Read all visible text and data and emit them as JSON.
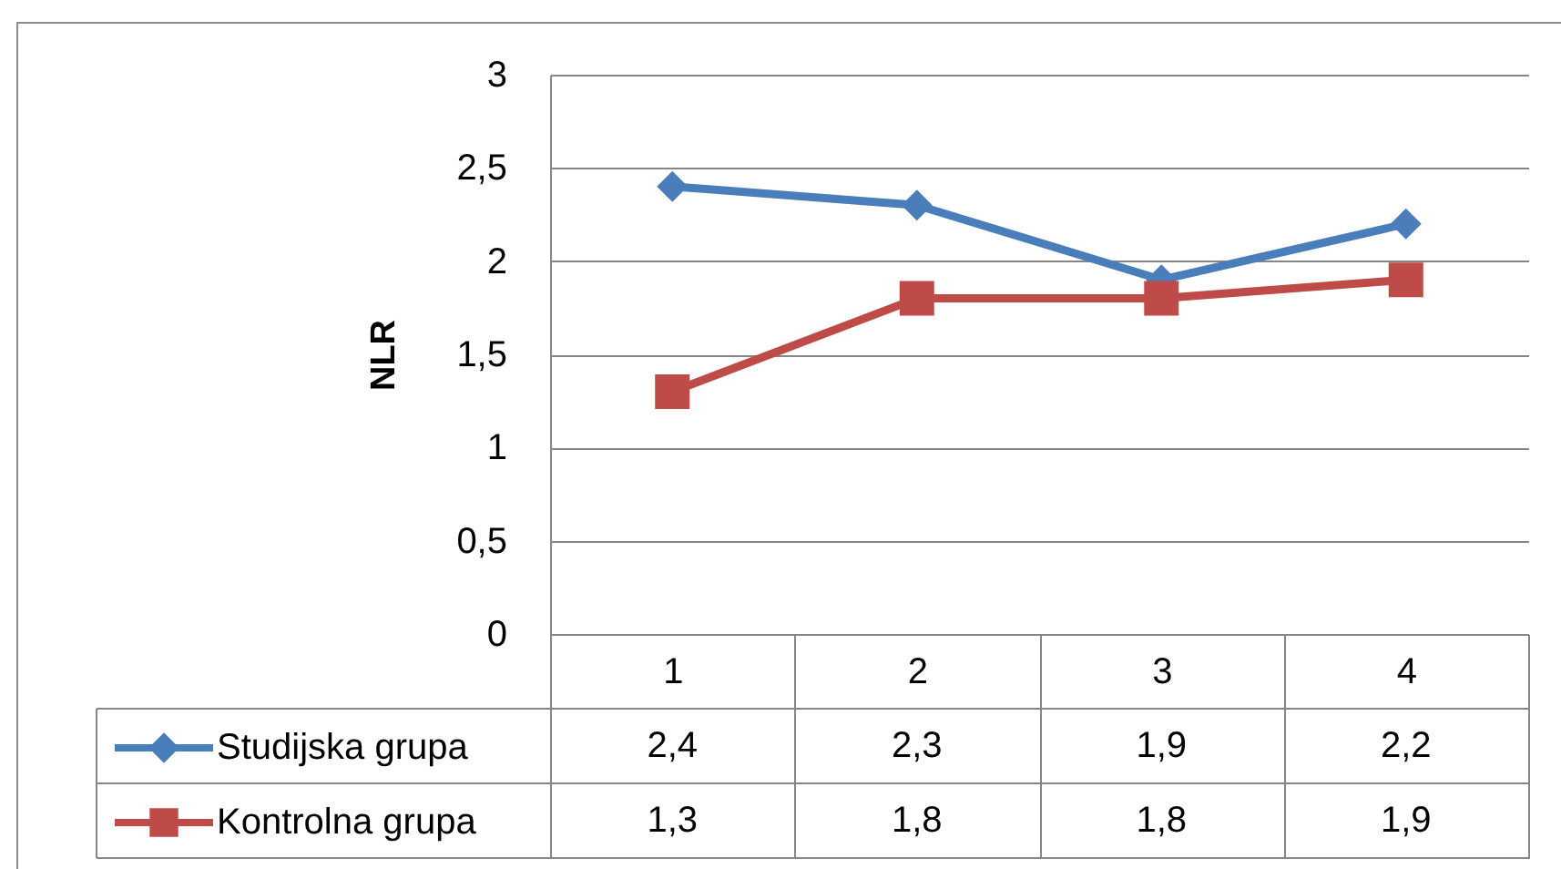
{
  "chart_data": {
    "type": "line",
    "ylabel": "NLR",
    "categories": [
      "1",
      "2",
      "3",
      "4"
    ],
    "series": [
      {
        "name": "Studijska grupa",
        "color": "#4a7ebb",
        "marker": "diamond",
        "values": [
          2.4,
          2.3,
          1.9,
          2.2
        ],
        "value_labels": [
          "2,4",
          "2,3",
          "1,9",
          "2,2"
        ]
      },
      {
        "name": "Kontrolna grupa",
        "color": "#be4b48",
        "marker": "square",
        "values": [
          1.3,
          1.8,
          1.8,
          1.9
        ],
        "value_labels": [
          "1,3",
          "1,8",
          "1,8",
          "1,9"
        ]
      }
    ],
    "ylim": [
      0,
      3
    ],
    "yticks": [
      0,
      {
        "value": 0.5,
        "label": "0,5"
      },
      1,
      {
        "value": 1.5,
        "label": "1,5"
      },
      2,
      {
        "value": 2.5,
        "label": "2,5"
      },
      3
    ],
    "grid": "y",
    "legend": "bottom",
    "line_style": "solid"
  }
}
